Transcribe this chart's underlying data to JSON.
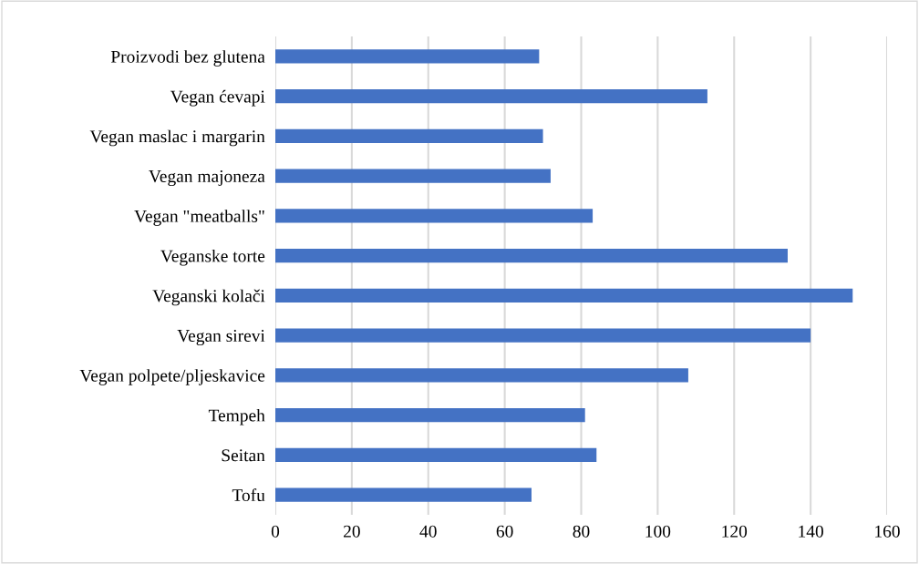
{
  "chart_data": {
    "type": "bar",
    "orientation": "horizontal",
    "categories": [
      "Proizvodi bez glutena",
      "Vegan ćevapi",
      "Vegan maslac i margarin",
      "Vegan majoneza",
      "Vegan \"meatballs\"",
      "Veganske torte",
      "Veganski kolači",
      "Vegan sirevi",
      "Vegan polpete/pljeskavice",
      "Tempeh",
      "Seitan",
      "Tofu"
    ],
    "values": [
      69,
      113,
      70,
      72,
      83,
      134,
      151,
      140,
      108,
      81,
      84,
      67
    ],
    "color": "#4472c4",
    "xlim": [
      0,
      160
    ],
    "xticks": [
      0,
      20,
      40,
      60,
      80,
      100,
      120,
      140,
      160
    ],
    "grid": "x"
  }
}
